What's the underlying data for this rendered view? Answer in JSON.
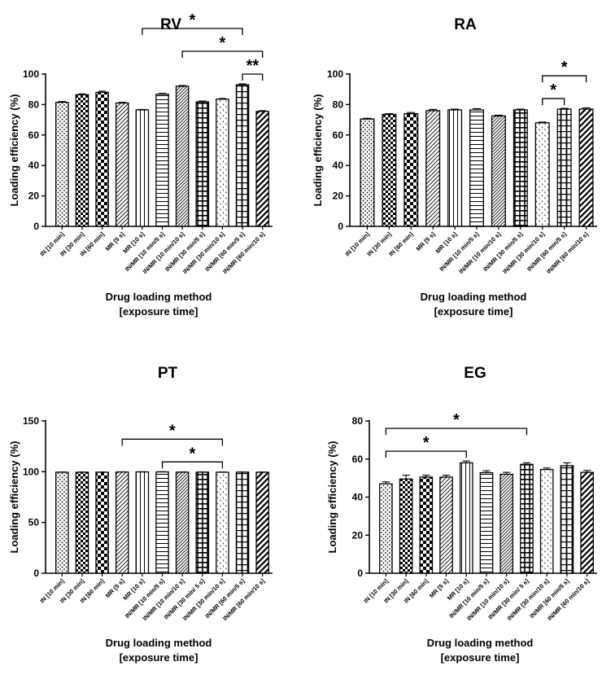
{
  "chart_data": [
    {
      "type": "bar",
      "title": "RV",
      "ylabel": "Loading efficiency (%)",
      "xlabel": [
        "Drug loading method",
        "[exposure time]"
      ],
      "ylim": [
        0,
        100
      ],
      "yticks": [
        0,
        20,
        40,
        60,
        80,
        100
      ],
      "categories": [
        "IN [10 min]",
        "IN [30 min]",
        "IN [60 min]",
        "MR [5 s]",
        "MR [10 s]",
        "IN/MR [10 min/5 s]",
        "IN/MR [10 min/10 s]",
        "IN/MR [30 min/5 s]",
        "IN/MR [30 min/10 s]",
        "IN/MR [60 min/5 s]",
        "IN/MR [60 min/10 s]"
      ],
      "values": [
        81.5,
        86.5,
        88,
        81,
        76.5,
        86.8,
        92,
        81.8,
        83.5,
        93,
        75.5
      ],
      "errors": [
        0.5,
        0.5,
        0.8,
        0.5,
        0.3,
        0.5,
        0.5,
        0.5,
        0.5,
        0.6,
        0.5
      ],
      "significance": [
        {
          "from": 4,
          "to": 9,
          "label": "*"
        },
        {
          "from": 6,
          "to": 10,
          "label": "*"
        },
        {
          "from": 9,
          "to": 10,
          "label": "**"
        }
      ]
    },
    {
      "type": "bar",
      "title": "RA",
      "ylabel": "Loading efficiency (%)",
      "xlabel": [
        "Drug loading method",
        "[exposure time]"
      ],
      "ylim": [
        0,
        100
      ],
      "yticks": [
        0,
        20,
        40,
        60,
        80,
        100
      ],
      "categories": [
        "IN [10 min]",
        "IN [30 min]",
        "IN [60 min]",
        "MR [5 s]",
        "MR [10 s]",
        "IN/MR [10 min/5 s]",
        "IN/MR [10 min/10 s]",
        "IN/MR [30 min/5 s]",
        "IN/MR [30 min/10 s]",
        "IN/MR [60 min/5 s]",
        "IN/MR [60 min/10 s]"
      ],
      "values": [
        70.5,
        73.5,
        74,
        76,
        76.5,
        76.5,
        72.5,
        76.5,
        68,
        77,
        77
      ],
      "errors": [
        0.5,
        0.5,
        0.8,
        0.8,
        0.5,
        0.8,
        0.5,
        0.5,
        0.5,
        0.5,
        0.8
      ],
      "significance": [
        {
          "from": 8,
          "to": 10,
          "label": "*"
        },
        {
          "from": 8,
          "to": 9,
          "label": "*"
        }
      ]
    },
    {
      "type": "bar",
      "title": "PT",
      "ylabel": "Loading efficiency (%)",
      "xlabel": [
        "Drug loading method",
        "[exposure time]"
      ],
      "ylim": [
        0,
        150
      ],
      "yticks": [
        0,
        50,
        100,
        150
      ],
      "categories": [
        "IN [10 min]",
        "IN [30 min]",
        "IN [60 min]",
        "MR [5 s]",
        "MR [10 s]",
        "IN/MR [10 min/5 s]",
        "IN/MR [10 min/10 s]",
        "IN/MR [30 min/ 5 s]",
        "IN/MR [30 min/10 s]",
        "IN/MR [60 min/5 s]",
        "IN/MR [60 min/10 s]"
      ],
      "values": [
        99.5,
        99.5,
        99.5,
        99.7,
        99.8,
        99.8,
        99.6,
        99.6,
        99.5,
        99.6,
        99.5
      ],
      "errors": [
        0.2,
        0.2,
        0.2,
        0.2,
        0.2,
        0.2,
        0.2,
        0.2,
        0.2,
        0.2,
        0.2
      ],
      "significance": [
        {
          "from": 3,
          "to": 8,
          "label": "*"
        },
        {
          "from": 5,
          "to": 8,
          "label": "*"
        }
      ]
    },
    {
      "type": "bar",
      "title": "EG",
      "ylabel": "Loading efficiency (%)",
      "xlabel": [
        "Drug loading method",
        "[exposure time]"
      ],
      "ylim": [
        0,
        80
      ],
      "yticks": [
        0,
        20,
        40,
        60,
        80
      ],
      "categories": [
        "IN [10 min]",
        "IN [30 min]",
        "IN [60 min]",
        "MR [5 s]",
        "MR [10 s]",
        "IN/MR [10 min/5 s]",
        "IN/MR [10 min/10 s]",
        "IN/MR [30 min/ 5 s]",
        "IN/MR [30 min/10 s]",
        "IN/MR [60 min/5 s]",
        "IN/MR [60 min/10 s]"
      ],
      "values": [
        47,
        49.5,
        50.5,
        50.5,
        58,
        52.8,
        52,
        57.2,
        54.5,
        56.5,
        53
      ],
      "errors": [
        1,
        2,
        1,
        1,
        1,
        1,
        1,
        0.8,
        0.8,
        1.5,
        1
      ],
      "significance": [
        {
          "from": 0,
          "to": 4,
          "label": "*"
        },
        {
          "from": 0,
          "to": 7,
          "label": "*"
        }
      ]
    }
  ]
}
